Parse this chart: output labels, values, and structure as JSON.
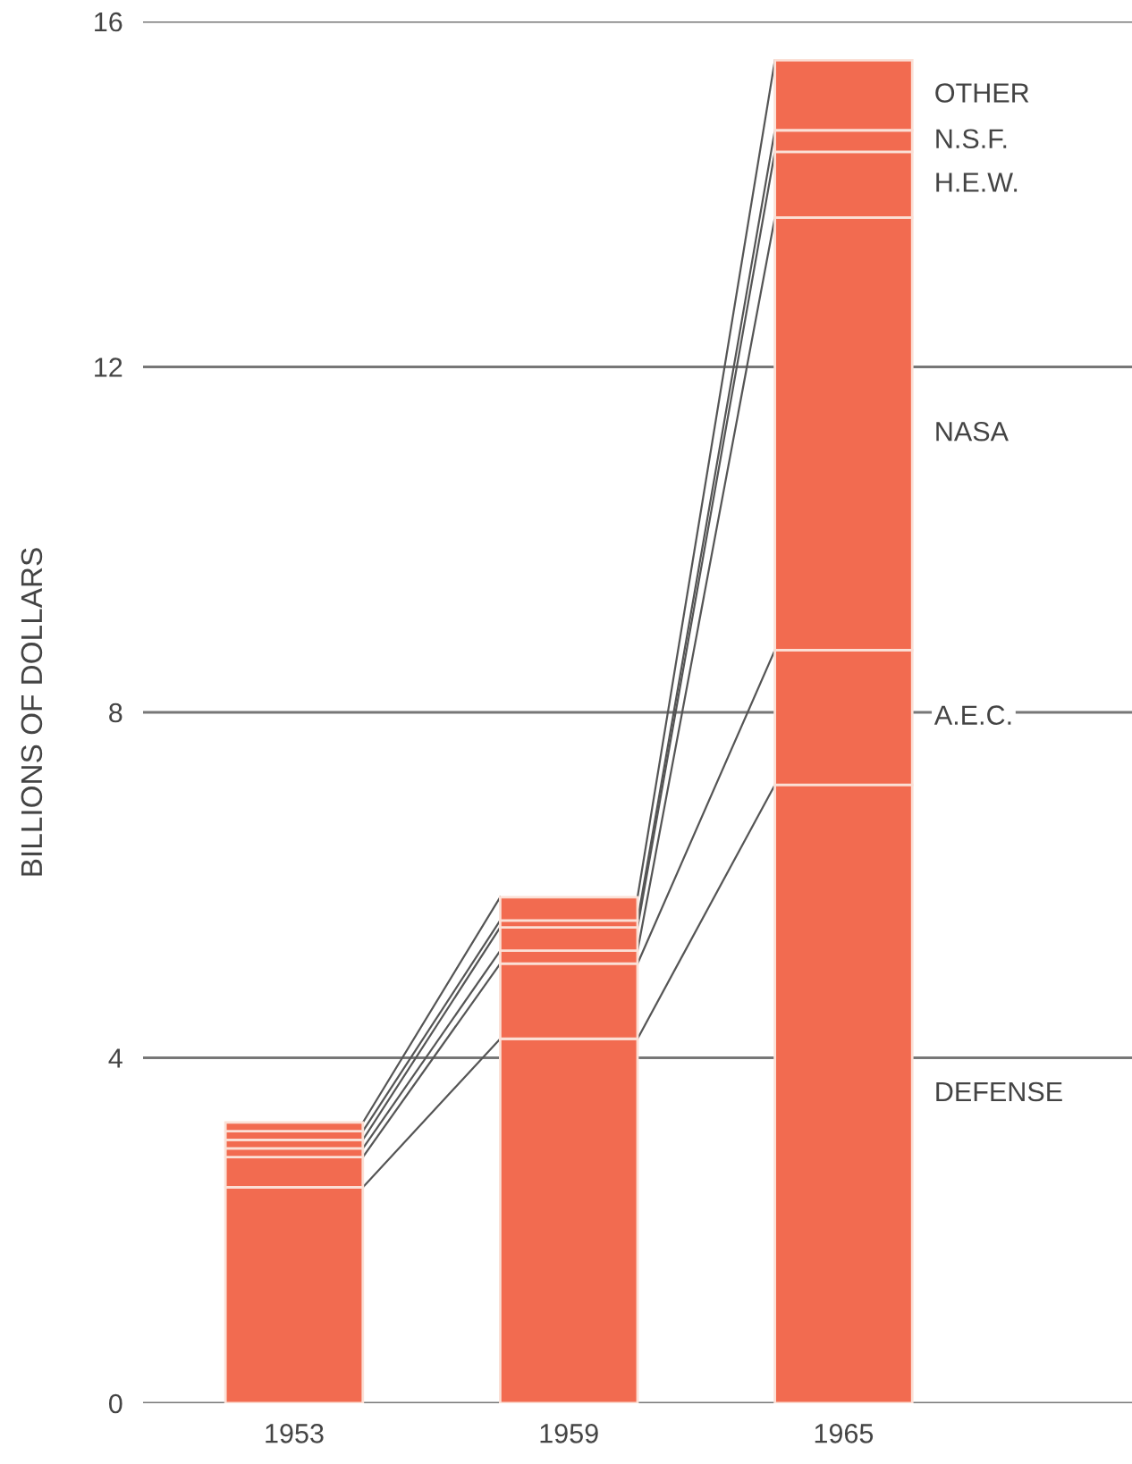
{
  "chart_data": {
    "type": "bar",
    "stacked": true,
    "ylabel": "BILLIONS OF DOLLARS",
    "categories": [
      "1953",
      "1959",
      "1965"
    ],
    "series": [
      {
        "name": "DEFENSE",
        "color": "#f26b50",
        "values": [
          2.5,
          4.22,
          7.16
        ]
      },
      {
        "name": "A.E.C.",
        "color": "#f26b50",
        "values": [
          0.35,
          0.87,
          1.56
        ]
      },
      {
        "name": "NASA",
        "color": "#f26b50",
        "values": [
          0.1,
          0.15,
          5.01
        ]
      },
      {
        "name": "H.E.W.",
        "color": "#f26b50",
        "values": [
          0.1,
          0.27,
          0.76
        ]
      },
      {
        "name": "N.S.F.",
        "color": "#f26b50",
        "values": [
          0.1,
          0.08,
          0.25
        ]
      },
      {
        "name": "OTHER",
        "color": "#f26b50",
        "values": [
          0.1,
          0.27,
          0.81
        ]
      }
    ],
    "ylim": [
      0,
      16
    ],
    "yticks": [
      0,
      4,
      8,
      12,
      16
    ],
    "grid": "y",
    "legend": false
  }
}
